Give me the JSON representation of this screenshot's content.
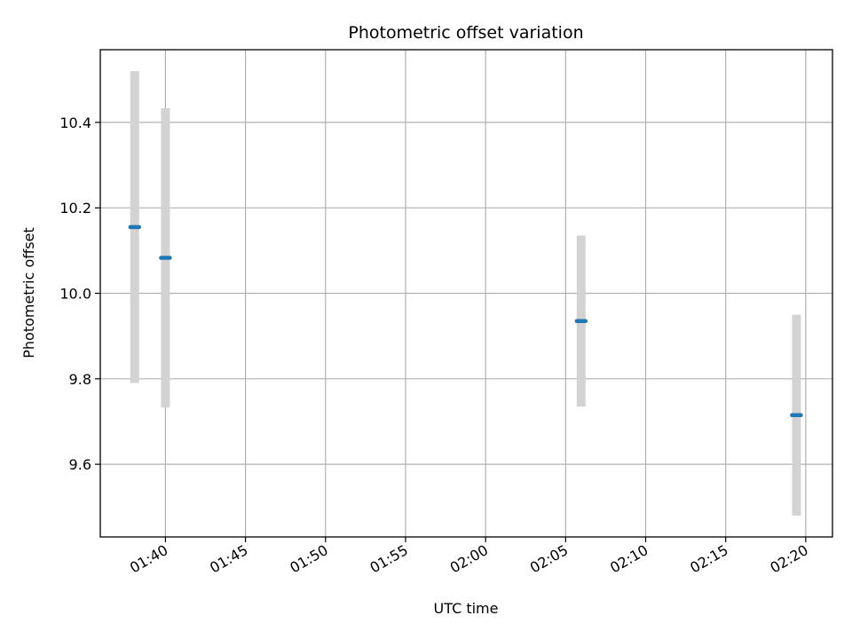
{
  "chart_data": {
    "type": "scatter",
    "title": "Photometric offset variation",
    "xlabel": "UTC time",
    "ylabel": "Photometric offset",
    "x_ticks": [
      "01:40",
      "01:45",
      "01:50",
      "01:55",
      "02:00",
      "02:05",
      "02:10",
      "02:15",
      "02:20"
    ],
    "x_tick_minutes": [
      100,
      105,
      110,
      115,
      120,
      125,
      130,
      135,
      140
    ],
    "xlim_minutes": [
      95.93,
      141.67
    ],
    "y_ticks": [
      "9.6",
      "9.8",
      "10.0",
      "10.2",
      "10.4"
    ],
    "y_tick_values": [
      9.6,
      9.8,
      10.0,
      10.2,
      10.4
    ],
    "ylim": [
      9.43,
      10.57
    ],
    "grid": true,
    "error_color": "#d3d3d3",
    "point_color": "#1f77b4",
    "points": [
      {
        "time": "01:38:05",
        "t": 98.08,
        "y": 10.155,
        "err": 0.365
      },
      {
        "time": "01:40:00",
        "t": 100.0,
        "y": 10.083,
        "err": 0.35
      },
      {
        "time": "02:05:58",
        "t": 125.97,
        "y": 9.935,
        "err": 0.2
      },
      {
        "time": "02:19:25",
        "t": 139.42,
        "y": 9.715,
        "err": 0.235
      }
    ]
  }
}
